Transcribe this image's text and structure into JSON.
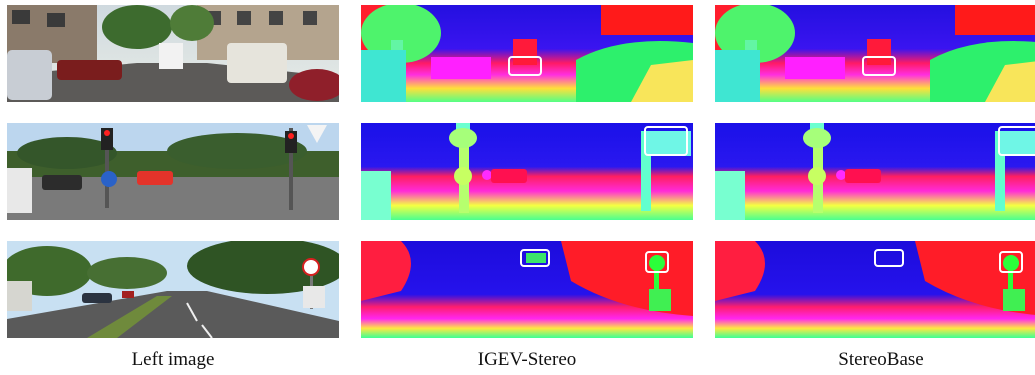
{
  "columns": [
    {
      "key": "left",
      "caption": "Left image"
    },
    {
      "key": "igev",
      "caption": "IGEV-Stereo"
    },
    {
      "key": "base",
      "caption": "StereoBase"
    }
  ],
  "rows": [
    {
      "scene": "urban-street"
    },
    {
      "scene": "intersection"
    },
    {
      "scene": "road-with-sign"
    }
  ],
  "colors": {
    "box": "#ffffff",
    "disparity_far": "#1a0fe0",
    "disparity_mid": "#ff1f6b",
    "disparity_near": "#2cff9a"
  }
}
